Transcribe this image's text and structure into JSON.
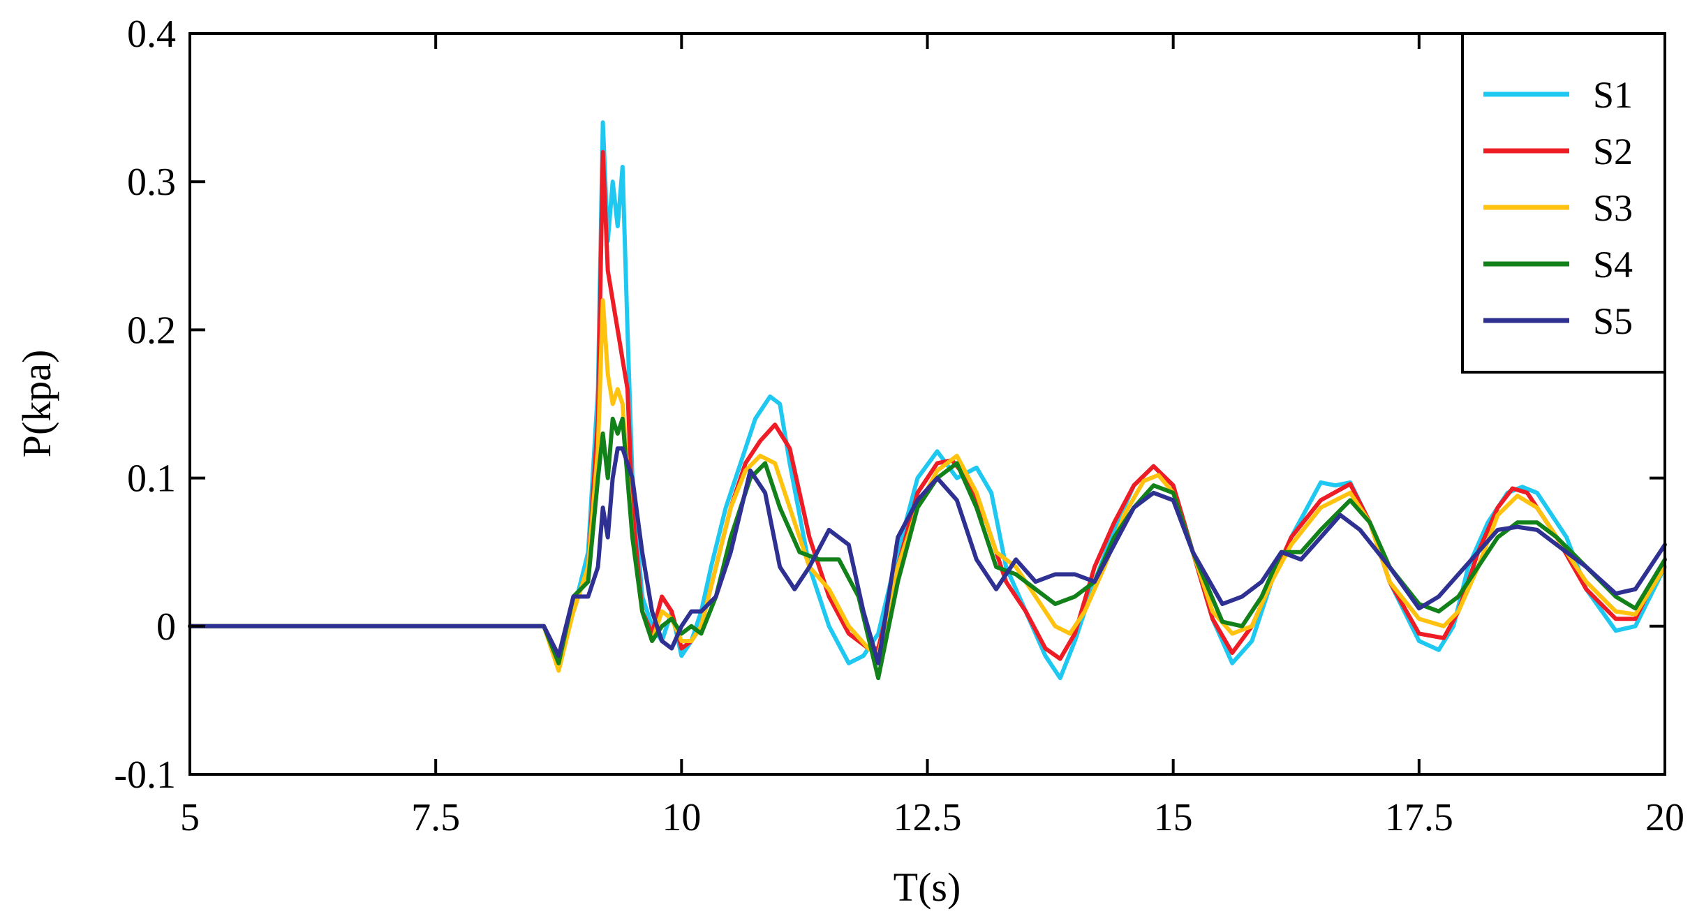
{
  "chart_data": {
    "type": "line",
    "title": "",
    "xlabel": "T(s)",
    "ylabel": "P(kpa)",
    "xlim": [
      5,
      20
    ],
    "ylim": [
      -0.1,
      0.4
    ],
    "xticks": [
      5,
      7.5,
      10,
      12.5,
      15,
      17.5,
      20
    ],
    "xtick_labels": [
      "5",
      "7.5",
      "10",
      "12.5",
      "15",
      "17.5",
      "20"
    ],
    "yticks": [
      -0.1,
      0,
      0.1,
      0.2,
      0.3,
      0.4
    ],
    "ytick_labels": [
      "-0.1",
      "0",
      "0.1",
      "0.2",
      "0.3",
      "0.4"
    ],
    "grid": false,
    "legend_position": "top-right",
    "series": [
      {
        "name": "S1",
        "color": "#1ec8f0",
        "x": [
          5,
          8.6,
          8.75,
          8.9,
          9.05,
          9.15,
          9.2,
          9.25,
          9.3,
          9.35,
          9.4,
          9.45,
          9.5,
          9.6,
          9.7,
          9.8,
          9.9,
          10.0,
          10.1,
          10.2,
          10.3,
          10.45,
          10.6,
          10.75,
          10.9,
          11.0,
          11.1,
          11.3,
          11.5,
          11.7,
          11.85,
          12.0,
          12.2,
          12.4,
          12.6,
          12.8,
          13.0,
          13.15,
          13.3,
          13.5,
          13.7,
          13.85,
          14.0,
          14.2,
          14.4,
          14.6,
          14.8,
          15.0,
          15.2,
          15.4,
          15.6,
          15.8,
          16.0,
          16.2,
          16.5,
          16.65,
          16.8,
          17.0,
          17.2,
          17.5,
          17.7,
          17.85,
          18.0,
          18.2,
          18.4,
          18.55,
          18.7,
          19.0,
          19.2,
          19.5,
          19.7,
          20.0
        ],
        "values": [
          0,
          0,
          -0.02,
          0.01,
          0.05,
          0.16,
          0.34,
          0.26,
          0.3,
          0.27,
          0.31,
          0.2,
          0.1,
          0.02,
          0.0,
          -0.01,
          0.01,
          -0.02,
          -0.01,
          0.01,
          0.04,
          0.08,
          0.11,
          0.14,
          0.155,
          0.15,
          0.11,
          0.04,
          0.0,
          -0.025,
          -0.02,
          -0.005,
          0.05,
          0.1,
          0.118,
          0.1,
          0.107,
          0.09,
          0.04,
          0.01,
          -0.02,
          -0.035,
          -0.01,
          0.03,
          0.065,
          0.095,
          0.108,
          0.095,
          0.05,
          0.005,
          -0.025,
          -0.01,
          0.03,
          0.06,
          0.097,
          0.095,
          0.097,
          0.07,
          0.03,
          -0.01,
          -0.016,
          0.0,
          0.04,
          0.07,
          0.09,
          0.094,
          0.09,
          0.06,
          0.025,
          -0.003,
          0.0,
          0.04
        ]
      },
      {
        "name": "S2",
        "color": "#ee1c24",
        "x": [
          5,
          8.6,
          8.75,
          8.9,
          9.05,
          9.15,
          9.2,
          9.25,
          9.3,
          9.35,
          9.4,
          9.45,
          9.5,
          9.6,
          9.7,
          9.8,
          9.9,
          10.0,
          10.1,
          10.2,
          10.35,
          10.5,
          10.65,
          10.8,
          10.95,
          11.1,
          11.3,
          11.5,
          11.7,
          11.9,
          12.0,
          12.2,
          12.4,
          12.6,
          12.75,
          12.9,
          13.1,
          13.3,
          13.5,
          13.7,
          13.85,
          14.0,
          14.2,
          14.4,
          14.6,
          14.8,
          15.0,
          15.2,
          15.4,
          15.6,
          15.8,
          16.0,
          16.2,
          16.5,
          16.8,
          17.0,
          17.2,
          17.5,
          17.75,
          17.9,
          18.1,
          18.3,
          18.45,
          18.6,
          18.9,
          19.2,
          19.5,
          19.7,
          20.0
        ],
        "values": [
          0,
          0,
          -0.02,
          0.01,
          0.04,
          0.14,
          0.32,
          0.24,
          0.22,
          0.2,
          0.18,
          0.16,
          0.08,
          0.01,
          -0.005,
          0.02,
          0.01,
          -0.015,
          -0.01,
          0.0,
          0.04,
          0.08,
          0.11,
          0.125,
          0.136,
          0.12,
          0.06,
          0.02,
          -0.005,
          -0.015,
          -0.015,
          0.04,
          0.09,
          0.11,
          0.112,
          0.1,
          0.07,
          0.03,
          0.01,
          -0.015,
          -0.022,
          -0.005,
          0.04,
          0.07,
          0.095,
          0.108,
          0.095,
          0.05,
          0.005,
          -0.018,
          0.0,
          0.03,
          0.06,
          0.085,
          0.096,
          0.07,
          0.03,
          -0.005,
          -0.008,
          0.01,
          0.05,
          0.08,
          0.093,
          0.09,
          0.06,
          0.025,
          0.005,
          0.005,
          0.045
        ]
      },
      {
        "name": "S3",
        "color": "#ffc20e",
        "x": [
          5,
          8.6,
          8.75,
          8.9,
          9.05,
          9.15,
          9.2,
          9.25,
          9.3,
          9.35,
          9.4,
          9.5,
          9.6,
          9.7,
          9.8,
          9.9,
          10.0,
          10.1,
          10.2,
          10.35,
          10.5,
          10.65,
          10.8,
          10.95,
          11.1,
          11.3,
          11.5,
          11.7,
          11.9,
          12.0,
          12.2,
          12.4,
          12.6,
          12.8,
          13.0,
          13.2,
          13.4,
          13.6,
          13.8,
          13.95,
          14.1,
          14.3,
          14.5,
          14.7,
          14.85,
          15.0,
          15.2,
          15.4,
          15.6,
          15.8,
          16.0,
          16.2,
          16.5,
          16.8,
          17.0,
          17.2,
          17.5,
          17.75,
          17.9,
          18.1,
          18.3,
          18.5,
          18.7,
          18.9,
          19.2,
          19.5,
          19.7,
          20.0
        ],
        "values": [
          0,
          0,
          -0.03,
          0.01,
          0.04,
          0.12,
          0.22,
          0.17,
          0.15,
          0.16,
          0.15,
          0.06,
          0.01,
          -0.01,
          0.01,
          0.005,
          -0.01,
          -0.01,
          0.0,
          0.04,
          0.08,
          0.105,
          0.115,
          0.11,
          0.08,
          0.04,
          0.025,
          0.0,
          -0.015,
          -0.02,
          0.04,
          0.08,
          0.105,
          0.115,
          0.09,
          0.05,
          0.04,
          0.02,
          0.0,
          -0.005,
          0.01,
          0.04,
          0.075,
          0.098,
          0.102,
          0.09,
          0.05,
          0.01,
          -0.005,
          0.0,
          0.03,
          0.055,
          0.08,
          0.09,
          0.07,
          0.03,
          0.005,
          0.0,
          0.01,
          0.04,
          0.075,
          0.088,
          0.08,
          0.06,
          0.03,
          0.01,
          0.008,
          0.04
        ]
      },
      {
        "name": "S4",
        "color": "#13811a",
        "x": [
          5,
          8.6,
          8.75,
          8.9,
          9.05,
          9.15,
          9.2,
          9.25,
          9.3,
          9.35,
          9.4,
          9.5,
          9.6,
          9.7,
          9.8,
          9.9,
          10.0,
          10.1,
          10.2,
          10.35,
          10.5,
          10.7,
          10.85,
          11.0,
          11.2,
          11.4,
          11.6,
          11.8,
          12.0,
          12.2,
          12.4,
          12.6,
          12.8,
          13.0,
          13.2,
          13.4,
          13.6,
          13.8,
          14.0,
          14.2,
          14.4,
          14.6,
          14.8,
          15.0,
          15.2,
          15.5,
          15.7,
          15.9,
          16.1,
          16.3,
          16.5,
          16.8,
          17.0,
          17.2,
          17.5,
          17.7,
          17.9,
          18.1,
          18.3,
          18.5,
          18.7,
          18.9,
          19.2,
          19.5,
          19.7,
          20.0
        ],
        "values": [
          0,
          0,
          -0.025,
          0.02,
          0.03,
          0.1,
          0.13,
          0.1,
          0.14,
          0.13,
          0.14,
          0.06,
          0.01,
          -0.01,
          0.0,
          0.005,
          -0.005,
          0.0,
          -0.005,
          0.02,
          0.06,
          0.1,
          0.11,
          0.08,
          0.05,
          0.045,
          0.045,
          0.02,
          -0.035,
          0.03,
          0.08,
          0.1,
          0.11,
          0.08,
          0.04,
          0.035,
          0.025,
          0.015,
          0.02,
          0.03,
          0.06,
          0.08,
          0.095,
          0.09,
          0.05,
          0.003,
          0.0,
          0.02,
          0.05,
          0.05,
          0.065,
          0.085,
          0.07,
          0.04,
          0.015,
          0.01,
          0.02,
          0.04,
          0.06,
          0.07,
          0.07,
          0.06,
          0.04,
          0.02,
          0.012,
          0.045
        ]
      },
      {
        "name": "S5",
        "color": "#2e3192",
        "x": [
          5,
          8.6,
          8.75,
          8.9,
          9.05,
          9.15,
          9.2,
          9.25,
          9.3,
          9.35,
          9.4,
          9.5,
          9.6,
          9.7,
          9.8,
          9.9,
          10.0,
          10.1,
          10.2,
          10.35,
          10.5,
          10.7,
          10.85,
          11.0,
          11.15,
          11.3,
          11.5,
          11.7,
          11.85,
          12.0,
          12.2,
          12.4,
          12.6,
          12.8,
          13.0,
          13.2,
          13.4,
          13.6,
          13.8,
          14.0,
          14.2,
          14.4,
          14.6,
          14.8,
          15.0,
          15.2,
          15.5,
          15.7,
          15.9,
          16.1,
          16.3,
          16.5,
          16.7,
          16.9,
          17.2,
          17.5,
          17.7,
          17.9,
          18.1,
          18.3,
          18.5,
          18.7,
          18.9,
          19.2,
          19.5,
          19.7,
          20.0
        ],
        "values": [
          0,
          0,
          -0.02,
          0.02,
          0.02,
          0.04,
          0.08,
          0.06,
          0.1,
          0.12,
          0.12,
          0.1,
          0.05,
          0.01,
          -0.01,
          -0.015,
          0.0,
          0.01,
          0.01,
          0.02,
          0.05,
          0.105,
          0.09,
          0.04,
          0.025,
          0.04,
          0.065,
          0.055,
          0.01,
          -0.025,
          0.06,
          0.085,
          0.1,
          0.085,
          0.045,
          0.025,
          0.045,
          0.03,
          0.035,
          0.035,
          0.03,
          0.055,
          0.08,
          0.09,
          0.085,
          0.05,
          0.015,
          0.02,
          0.03,
          0.05,
          0.045,
          0.06,
          0.075,
          0.065,
          0.04,
          0.012,
          0.02,
          0.035,
          0.05,
          0.065,
          0.067,
          0.065,
          0.055,
          0.04,
          0.022,
          0.025,
          0.055
        ]
      }
    ]
  }
}
